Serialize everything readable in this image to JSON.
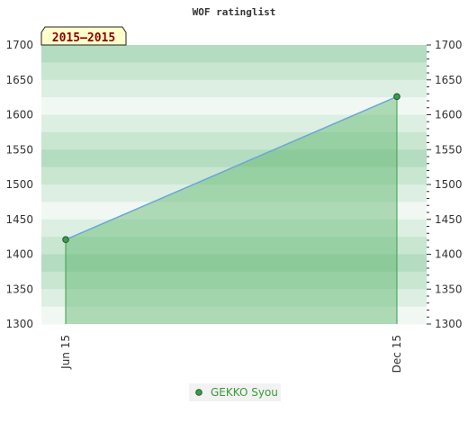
{
  "chart_data": {
    "type": "area",
    "title": "WOF ratinglist",
    "period_label": "2015–2015",
    "x": [
      "Jun 15",
      "Dec 15"
    ],
    "series": [
      {
        "name": "GEKKO Syou",
        "values": [
          1421,
          1626
        ]
      }
    ],
    "xlabel": "",
    "ylabel": "",
    "ylim": [
      1300,
      1700
    ],
    "yticks": [
      1300,
      1350,
      1400,
      1450,
      1500,
      1550,
      1600,
      1650,
      1700
    ],
    "ytick_labels": [
      "1300",
      "1350",
      "1400",
      "1450",
      "1500",
      "1550",
      "1600",
      "1650",
      "1700"
    ],
    "grid": true,
    "legend": "bottom-center"
  },
  "colors": {
    "line": "#6aa6d8",
    "area": "#5cb56a",
    "marker": "#3c9c4c",
    "marker_stroke": "#1d5a2a",
    "badge_fill": "#ffffcc",
    "band_dark": "#b3dcc0",
    "band_light": "#f1f8f3"
  }
}
